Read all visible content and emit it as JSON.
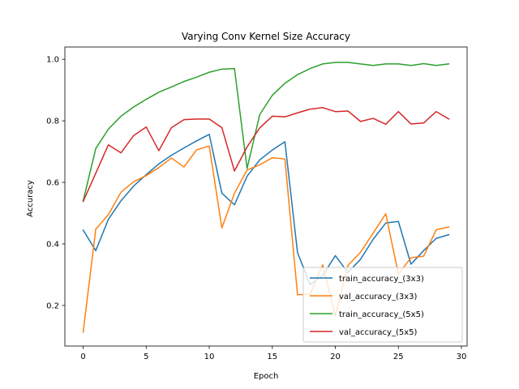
{
  "chart_data": {
    "type": "line",
    "title": "Varying Conv Kernel Size Accuracy",
    "xlabel": "Epoch",
    "ylabel": "Accuracy",
    "xlim": [
      -1.45,
      30.45
    ],
    "ylim": [
      0.068,
      1.04
    ],
    "xticks": [
      0,
      5,
      10,
      15,
      20,
      25,
      30
    ],
    "yticks": [
      0.2,
      0.4,
      0.6,
      0.8,
      1.0
    ],
    "ytick_labels": [
      "0.2",
      "0.4",
      "0.6",
      "0.8",
      "1.0"
    ],
    "grid": false,
    "legend_position": "lower right",
    "x": [
      0,
      1,
      2,
      3,
      4,
      5,
      6,
      7,
      8,
      9,
      10,
      11,
      12,
      13,
      14,
      15,
      16,
      17,
      18,
      19,
      20,
      21,
      22,
      23,
      24,
      25,
      26,
      27,
      28,
      29
    ],
    "series": [
      {
        "name": "train_accuracy_(3x3)",
        "color": "#1f77b4",
        "values": [
          0.445,
          0.378,
          0.48,
          0.54,
          0.588,
          0.625,
          0.66,
          0.688,
          0.712,
          0.735,
          0.756,
          0.565,
          0.527,
          0.62,
          0.673,
          0.705,
          0.732,
          0.372,
          0.268,
          0.297,
          0.362,
          0.307,
          0.35,
          0.415,
          0.468,
          0.473,
          0.334,
          0.378,
          0.418,
          0.43
        ]
      },
      {
        "name": "val_accuracy_(3x3)",
        "color": "#ff7f0e",
        "values": [
          0.113,
          0.448,
          0.495,
          0.568,
          0.602,
          0.622,
          0.648,
          0.679,
          0.65,
          0.706,
          0.718,
          0.452,
          0.565,
          0.64,
          0.657,
          0.68,
          0.676,
          0.235,
          0.236,
          0.332,
          0.166,
          0.33,
          0.373,
          0.435,
          0.498,
          0.302,
          0.355,
          0.36,
          0.446,
          0.455
        ]
      },
      {
        "name": "train_accuracy_(5x5)",
        "color": "#2ca02c",
        "values": [
          0.54,
          0.71,
          0.773,
          0.815,
          0.845,
          0.87,
          0.893,
          0.91,
          0.928,
          0.942,
          0.958,
          0.968,
          0.97,
          0.645,
          0.82,
          0.883,
          0.922,
          0.95,
          0.97,
          0.985,
          0.99,
          0.99,
          0.985,
          0.98,
          0.985,
          0.985,
          0.98,
          0.986,
          0.98,
          0.985
        ]
      },
      {
        "name": "val_accuracy_(5x5)",
        "color": "#d62728",
        "values": [
          0.538,
          0.63,
          0.722,
          0.696,
          0.752,
          0.78,
          0.703,
          0.778,
          0.804,
          0.806,
          0.806,
          0.778,
          0.637,
          0.715,
          0.777,
          0.815,
          0.813,
          0.826,
          0.838,
          0.843,
          0.83,
          0.832,
          0.798,
          0.808,
          0.789,
          0.83,
          0.79,
          0.793,
          0.83,
          0.806
        ]
      }
    ]
  }
}
